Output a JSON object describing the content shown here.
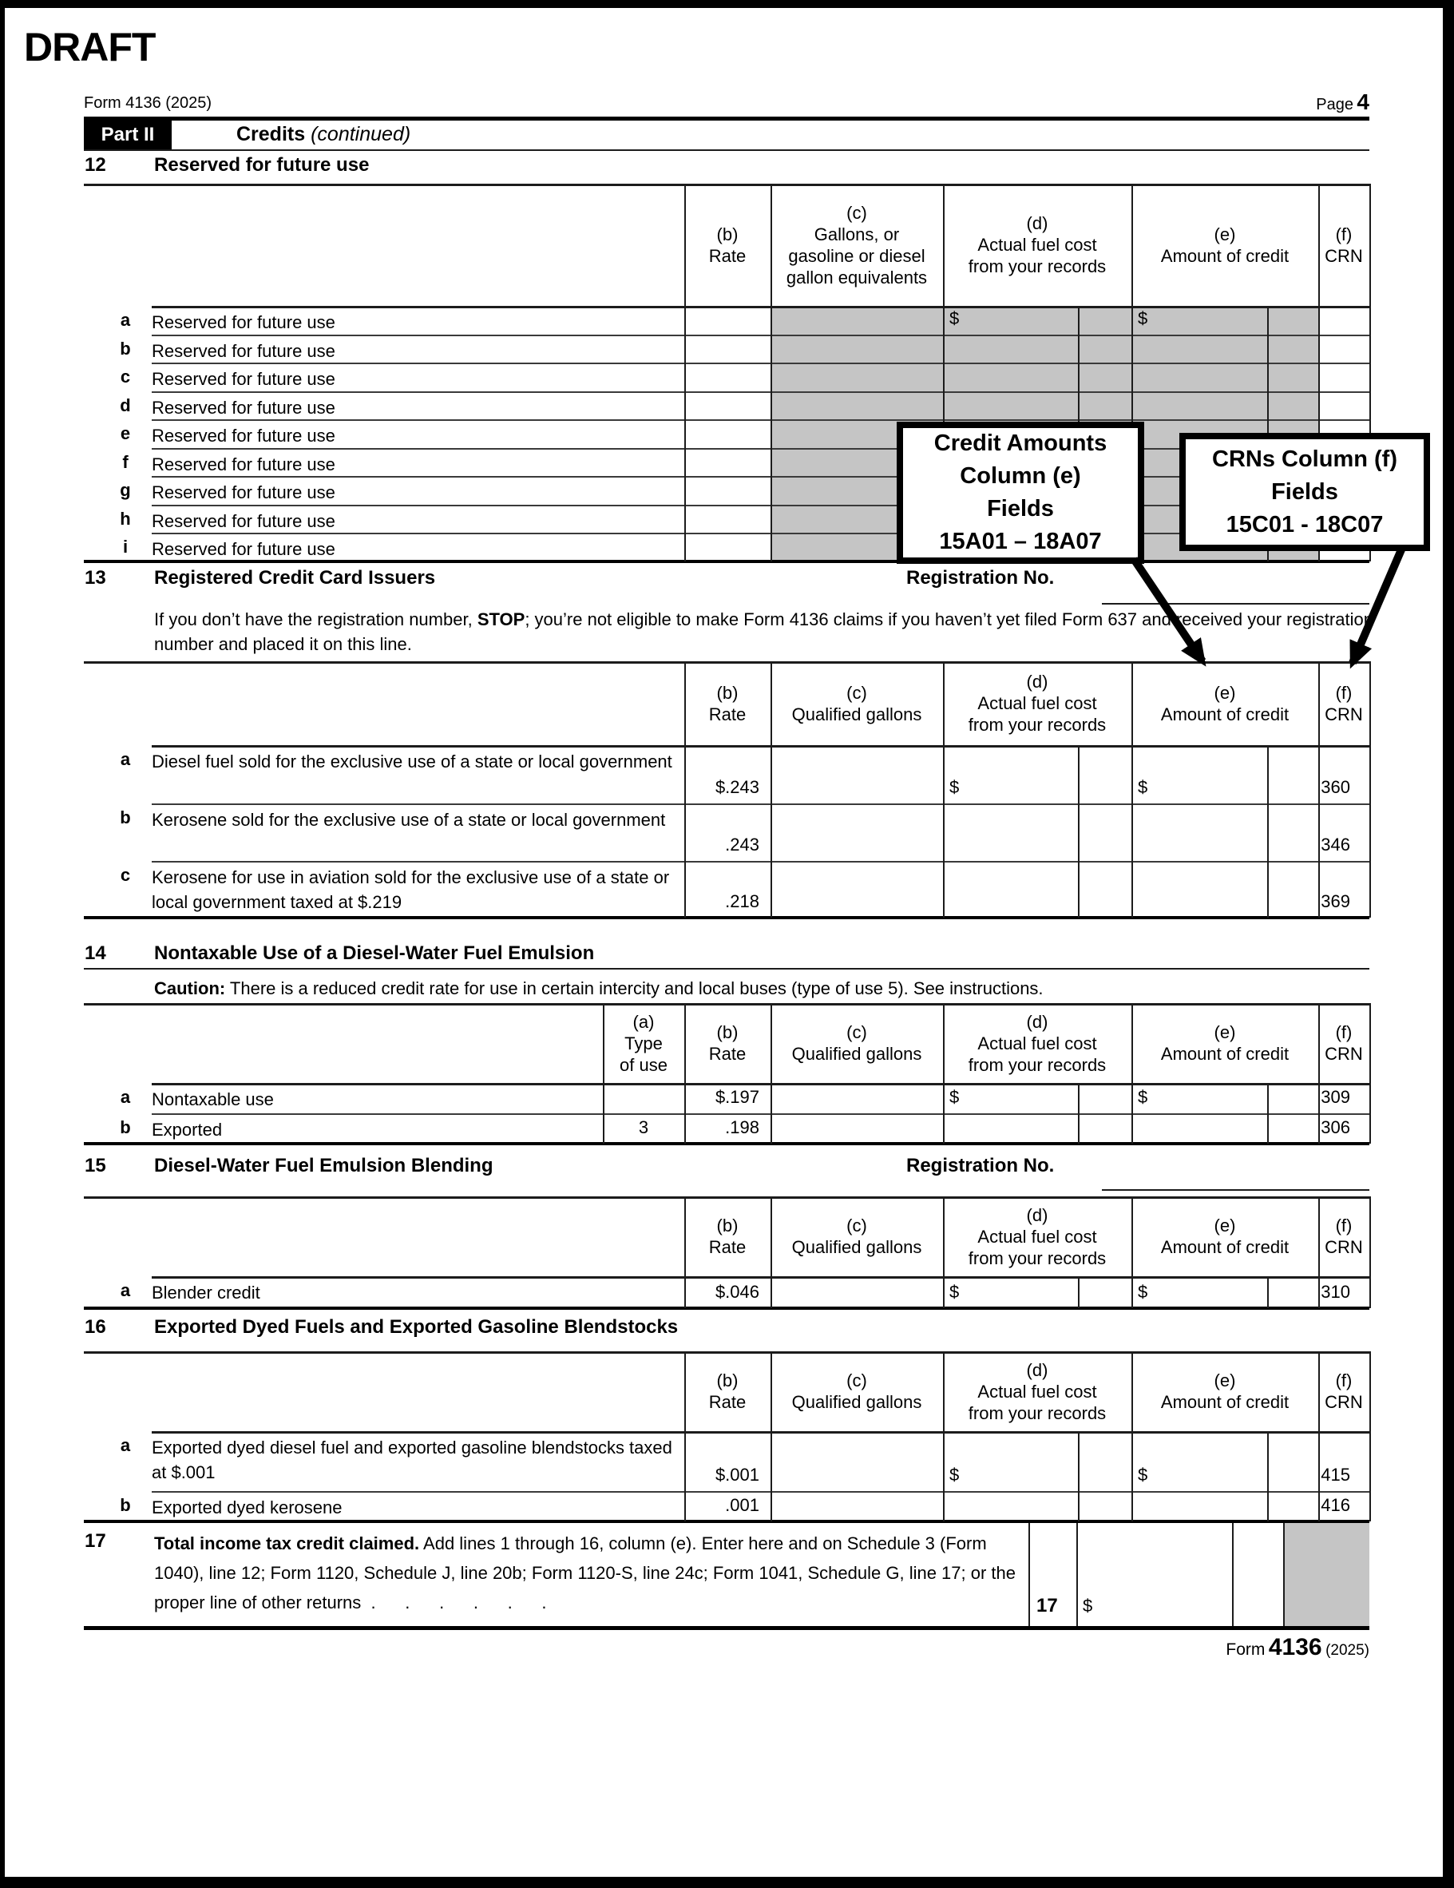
{
  "page": {
    "draft": "DRAFT",
    "form_id": "Form 4136 (2025)",
    "page_label": "Page",
    "page_number": "4",
    "part_label": "Part II",
    "part_title": "Credits",
    "part_title_note": "(continued)",
    "footer_label": "Form",
    "footer_number": "4136",
    "footer_year": "(2025)"
  },
  "colors": {
    "shade": "#c5c5c5",
    "line": "#1c1c1c"
  },
  "callouts": {
    "credit": {
      "l1": "Credit Amounts",
      "l2": "Column (e)",
      "l3": "Fields",
      "l4": "15A01 – 18A07"
    },
    "crn": {
      "l1": "CRNs Column (f)",
      "l2": "Fields",
      "l3": "15C01 - 18C07"
    }
  },
  "s12": {
    "num": "12",
    "title": "Reserved for future use"
  },
  "s13": {
    "num": "13",
    "title": "Registered Credit Card Issuers",
    "reg": "Registration No.",
    "note_pre": "If you don’t have the registration number, ",
    "note_stop": "STOP",
    "note_post": "; you’re not eligible to make Form 4136 claims if you haven’t yet filed Form 637 and received your registration number and placed it on this line."
  },
  "s14": {
    "num": "14",
    "title": "Nontaxable Use of a Diesel-Water Fuel Emulsion",
    "caution_label": "Caution:",
    "caution_text": " There is a reduced credit rate for use in certain intercity and local buses (type of use 5). See instructions."
  },
  "s15": {
    "num": "15",
    "title": "Diesel-Water Fuel Emulsion Blending",
    "reg": "Registration No."
  },
  "s16": {
    "num": "16",
    "title": "Exported Dyed Fuels and Exported Gasoline Blendstocks"
  },
  "s17": {
    "num": "17",
    "lead": "Total income tax credit claimed.",
    "text": " Add lines 1 through 16, column (e). Enter here and on Schedule 3 (Form 1040), line 12; Form 1120, Schedule J, line 20b; Form 1120-S, line 24c; Form 1041, Schedule G, line 17; or the proper line of other returns",
    "dots": "  .      .      .      .      .      .",
    "box_num": "17",
    "dollar": "$"
  },
  "tables": {
    "t12": {
      "headers": {
        "b": [
          "(b)",
          "Rate"
        ],
        "c": [
          "(c)",
          "Gallons, or",
          "gasoline or diesel",
          "gallon equivalents"
        ],
        "d": [
          "(d)",
          "Actual fuel cost",
          "from your records"
        ],
        "e": [
          "(e)",
          "Amount of credit"
        ],
        "f": [
          "(f)",
          "CRN"
        ]
      },
      "rows": [
        {
          "letter": "a",
          "label": "Reserved for future use",
          "d": "$",
          "e": "$"
        },
        {
          "letter": "b",
          "label": "Reserved for future use"
        },
        {
          "letter": "c",
          "label": "Reserved for future use"
        },
        {
          "letter": "d",
          "label": "Reserved for future use"
        },
        {
          "letter": "e",
          "label": "Reserved for future use"
        },
        {
          "letter": "f",
          "label": "Reserved for future use"
        },
        {
          "letter": "g",
          "label": "Reserved for future use"
        },
        {
          "letter": "h",
          "label": "Reserved for future use"
        },
        {
          "letter": "i",
          "label": "Reserved for future use"
        }
      ]
    },
    "t13": {
      "headers": {
        "b": [
          "(b)",
          "Rate"
        ],
        "c": [
          "(c)",
          "Qualified gallons"
        ],
        "d": [
          "(d)",
          "Actual fuel cost",
          "from your records"
        ],
        "e": [
          "(e)",
          "Amount of credit"
        ],
        "f": [
          "(f)",
          "CRN"
        ]
      },
      "rows": [
        {
          "letter": "a",
          "label": "Diesel fuel sold for the exclusive use of a state or local government",
          "rate": "$.243",
          "d": "$",
          "e": "$",
          "crn": "360"
        },
        {
          "letter": "b",
          "label": "Kerosene sold for the exclusive use of a state or local government",
          "rate": ".243",
          "crn": "346"
        },
        {
          "letter": "c",
          "label": "Kerosene for use in aviation sold for the exclusive use of a state or local government taxed at $.219",
          "rate": ".218",
          "crn": "369"
        }
      ]
    },
    "t14": {
      "headers": {
        "a": [
          "(a)",
          "Type",
          "of use"
        ],
        "b": [
          "(b)",
          "Rate"
        ],
        "c": [
          "(c)",
          "Qualified gallons"
        ],
        "d": [
          "(d)",
          "Actual fuel cost",
          "from your records"
        ],
        "e": [
          "(e)",
          "Amount of credit"
        ],
        "f": [
          "(f)",
          "CRN"
        ]
      },
      "rows": [
        {
          "letter": "a",
          "label": "Nontaxable use",
          "rate": "$.197",
          "d": "$",
          "e": "$",
          "crn": "309"
        },
        {
          "letter": "b",
          "label": "Exported",
          "type": "3",
          "rate": ".198",
          "crn": "306"
        }
      ]
    },
    "t15": {
      "headers": {
        "b": [
          "(b)",
          "Rate"
        ],
        "c": [
          "(c)",
          "Qualified gallons"
        ],
        "d": [
          "(d)",
          "Actual fuel cost",
          "from your records"
        ],
        "e": [
          "(e)",
          "Amount of credit"
        ],
        "f": [
          "(f)",
          "CRN"
        ]
      },
      "rows": [
        {
          "letter": "a",
          "label": "Blender credit",
          "rate": "$.046",
          "d": "$",
          "e": "$",
          "crn": "310"
        }
      ]
    },
    "t16": {
      "headers": {
        "b": [
          "(b)",
          "Rate"
        ],
        "c": [
          "(c)",
          "Qualified gallons"
        ],
        "d": [
          "(d)",
          "Actual fuel cost",
          "from your records"
        ],
        "e": [
          "(e)",
          "Amount of credit"
        ],
        "f": [
          "(f)",
          "CRN"
        ]
      },
      "rows": [
        {
          "letter": "a",
          "label": "Exported dyed diesel fuel and exported gasoline blendstocks taxed at $.001",
          "rate": "$.001",
          "d": "$",
          "e": "$",
          "crn": "415"
        },
        {
          "letter": "b",
          "label": "Exported dyed kerosene",
          "rate": ".001",
          "crn": "416"
        }
      ]
    }
  }
}
